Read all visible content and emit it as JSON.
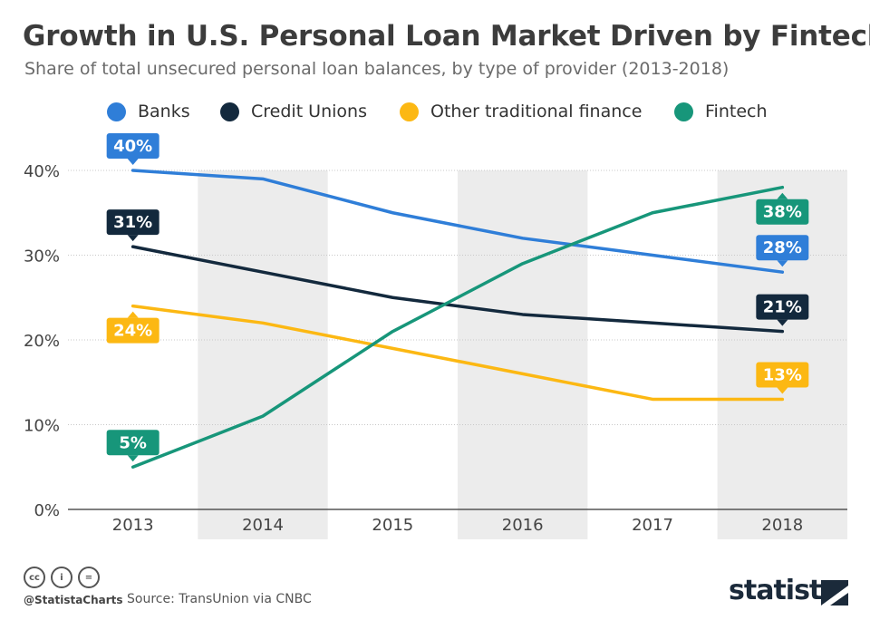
{
  "title": "Growth in U.S. Personal Loan Market Driven by Fintech",
  "subtitle": "Share of total unsecured personal loan balances, by type of provider (2013-2018)",
  "legend": [
    {
      "label": "Banks",
      "color": "#2f7ed8"
    },
    {
      "label": "Credit Unions",
      "color": "#13293d"
    },
    {
      "label": "Other traditional finance",
      "color": "#fcb813"
    },
    {
      "label": "Fintech",
      "color": "#17967a"
    }
  ],
  "chart_data": {
    "type": "line",
    "x": [
      "2013",
      "2014",
      "2015",
      "2016",
      "2017",
      "2018"
    ],
    "ylim": [
      0,
      40
    ],
    "yticks": [
      0,
      10,
      20,
      30,
      40
    ],
    "ytick_labels": [
      "0%",
      "10%",
      "20%",
      "30%",
      "40%"
    ],
    "grid": true,
    "legend_position": "top",
    "series": [
      {
        "name": "Banks",
        "color": "#2f7ed8",
        "values": [
          40,
          39,
          35,
          32,
          30,
          28
        ],
        "start_label": "40%",
        "end_label": "28%"
      },
      {
        "name": "Credit Unions",
        "color": "#13293d",
        "values": [
          31,
          28,
          25,
          23,
          22,
          21
        ],
        "start_label": "31%",
        "end_label": "21%"
      },
      {
        "name": "Other traditional finance",
        "color": "#fcb813",
        "values": [
          24,
          22,
          19,
          16,
          13,
          13
        ],
        "start_label": "24%",
        "end_label": "13%"
      },
      {
        "name": "Fintech",
        "color": "#17967a",
        "values": [
          5,
          11,
          21,
          29,
          35,
          38
        ],
        "start_label": "5%",
        "end_label": "38%"
      }
    ]
  },
  "footer": {
    "handle": "@StatistaCharts",
    "source": "Source: TransUnion via CNBC",
    "brand": "statista",
    "icons": [
      "cc-icon",
      "by-icon",
      "nd-icon"
    ],
    "icon_glyphs": [
      "cc",
      "i",
      "="
    ]
  }
}
